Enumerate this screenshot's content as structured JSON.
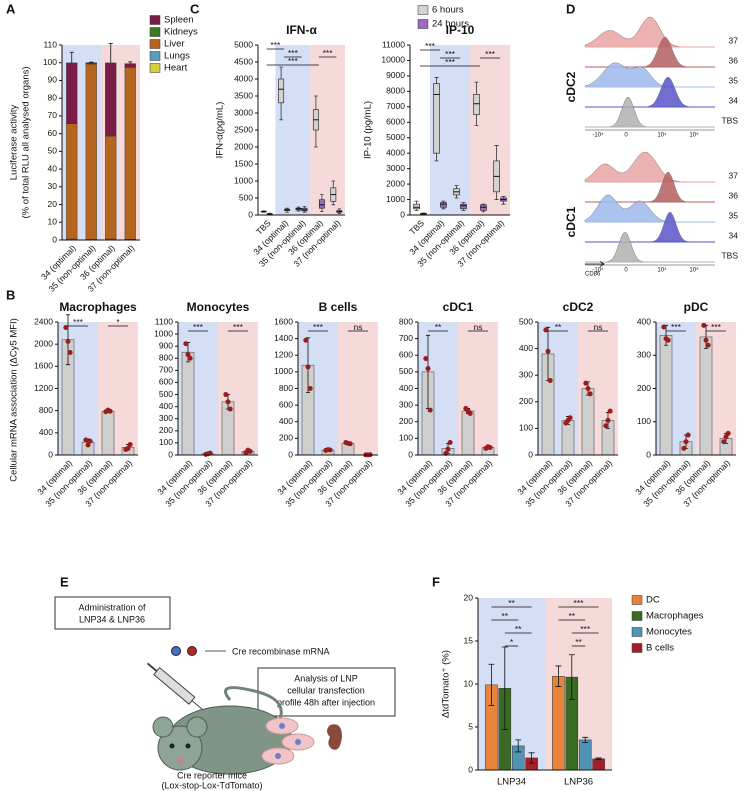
{
  "panel_labels": [
    "A",
    "B",
    "C",
    "D",
    "E",
    "F"
  ],
  "chart_data": [
    {
      "type": "stacked_bar",
      "ylabel": [
        "Luciferase activity",
        "(% of total RLU all analysed organs)"
      ],
      "categories": [
        "34 (optimal)",
        "35 (non-optimal)",
        "36 (optimal)",
        "37 (non-optimal)"
      ],
      "ylim": [
        0,
        110
      ],
      "yticks": [
        0,
        10,
        20,
        30,
        40,
        50,
        60,
        70,
        80,
        90,
        100,
        110
      ],
      "series": [
        {
          "name": "Spleen",
          "color": "#7a1d46",
          "values": [
            34,
            0.6,
            41,
            2
          ],
          "errors": [
            6,
            0.3,
            11,
            1
          ]
        },
        {
          "name": "Kidneys",
          "color": "#3f7a28",
          "values": [
            0.3,
            0.1,
            0.3,
            0.1
          ]
        },
        {
          "name": "Liver",
          "color": "#b5651d",
          "values": [
            65,
            99,
            58,
            97
          ],
          "errors": [
            6,
            0.5,
            10,
            1
          ]
        },
        {
          "name": "Lungs",
          "color": "#5b9bc0",
          "values": [
            0.4,
            0.2,
            0.4,
            0.3
          ]
        },
        {
          "name": "Heart",
          "color": "#d8cc3c",
          "values": [
            0.2,
            0.1,
            0.2,
            0.1
          ]
        }
      ]
    },
    {
      "type": "box",
      "title": "IFN-α",
      "ylabel": "IFN-α(pg/mL)",
      "categories": [
        "TBS",
        "34 (optimal)",
        "35 (non-optimal)",
        "36 (optimal)",
        "37 (non-optimal)"
      ],
      "ylim": [
        0,
        5000
      ],
      "yticks": [
        0,
        500,
        1000,
        1500,
        2000,
        2500,
        3000,
        3500,
        4000,
        4500,
        5000
      ],
      "series": [
        {
          "name": "6 hours",
          "color": "#d3d3d3",
          "boxes": [
            [
              80,
              90,
              100,
              110,
              120
            ],
            [
              2800,
              3300,
              3700,
              4000,
              4350
            ],
            [
              120,
              150,
              180,
              200,
              230
            ],
            [
              2000,
              2500,
              2800,
              3100,
              3500
            ],
            [
              300,
              400,
              600,
              800,
              1000
            ]
          ]
        },
        {
          "name": "24 hours",
          "color": "#9b6cc0",
          "boxes": [
            [
              10,
              20,
              30,
              40,
              50
            ],
            [
              80,
              130,
              150,
              170,
              200
            ],
            [
              80,
              120,
              150,
              200,
              250
            ],
            [
              100,
              200,
              300,
              450,
              600
            ],
            [
              50,
              80,
              100,
              130,
              180
            ]
          ]
        }
      ],
      "brackets": [
        {
          "label": "***",
          "between": [
            0,
            1
          ]
        },
        {
          "label": "***",
          "between": [
            1,
            2
          ]
        },
        {
          "label": "***",
          "between": [
            0,
            3
          ]
        },
        {
          "label": "***",
          "between": [
            3,
            4
          ]
        }
      ]
    },
    {
      "type": "box",
      "title": "IP-10",
      "ylabel": "IP-10 (pg/mL)",
      "categories": [
        "TBS",
        "34 (optimal)",
        "35 (non-optimal)",
        "36 (optimal)",
        "37 (non-optimal)"
      ],
      "ylim": [
        0,
        11000
      ],
      "yticks": [
        0,
        1000,
        2000,
        3000,
        4000,
        5000,
        6000,
        7000,
        8000,
        9000,
        10000,
        11000
      ],
      "series": [
        {
          "color": "#d3d3d3",
          "boxes": [
            [
              300,
              400,
              500,
              700,
              900
            ],
            [
              3500,
              4000,
              7800,
              8500,
              8900
            ],
            [
              1100,
              1300,
              1500,
              1700,
              1900
            ],
            [
              5800,
              6500,
              7200,
              7800,
              8600
            ],
            [
              1000,
              1500,
              2500,
              3500,
              4500
            ]
          ]
        },
        {
          "color": "#9b6cc0",
          "boxes": [
            [
              30,
              50,
              80,
              100,
              130
            ],
            [
              400,
              500,
              700,
              800,
              900
            ],
            [
              300,
              400,
              600,
              700,
              800
            ],
            [
              200,
              300,
              500,
              650,
              700
            ],
            [
              700,
              900,
              1000,
              1100,
              1200
            ]
          ]
        }
      ],
      "brackets": [
        {
          "label": "***",
          "between": [
            0,
            1
          ]
        },
        {
          "label": "***",
          "between": [
            1,
            2
          ]
        },
        {
          "label": "***",
          "between": [
            0,
            3
          ]
        },
        {
          "label": "***",
          "between": [
            3,
            4
          ]
        }
      ]
    },
    {
      "type": "bar",
      "title": "Macrophages",
      "ylabel": "Cellular mRNA association (ΔCy5 MFI)",
      "color": "#cfcfcf",
      "point_color": "#9b1c1c",
      "categories": [
        "34 (optimal)",
        "35 (non-optimal)",
        "36 (optimal)",
        "37 (non-optimal)"
      ],
      "ylim": [
        0,
        2400
      ],
      "yticks": [
        0,
        400,
        800,
        1200,
        1600,
        2000,
        2400
      ],
      "values": [
        2080,
        230,
        790,
        140
      ],
      "errors": [
        450,
        60,
        20,
        50
      ],
      "points": [
        [
          2300,
          2050,
          1850
        ],
        [
          270,
          180,
          250
        ],
        [
          780,
          810,
          790
        ],
        [
          100,
          120,
          190
        ]
      ],
      "brackets": [
        {
          "label": "***",
          "between": [
            0,
            1
          ]
        },
        {
          "label": "*",
          "between": [
            2,
            3
          ]
        }
      ]
    },
    {
      "type": "bar",
      "title": "Monocytes",
      "color": "#cfcfcf",
      "point_color": "#9b1c1c",
      "categories": [
        "34 (optimal)",
        "35 (non-optimal)",
        "36 (optimal)",
        "37 (non-optimal)"
      ],
      "ylim": [
        0,
        1100
      ],
      "yticks": [
        0,
        100,
        200,
        300,
        400,
        500,
        600,
        700,
        800,
        900,
        1000,
        1100
      ],
      "values": [
        850,
        10,
        440,
        30
      ],
      "errors": [
        80,
        10,
        60,
        15
      ],
      "points": [
        [
          920,
          830,
          800
        ],
        [
          5,
          10,
          15
        ],
        [
          500,
          440,
          380
        ],
        [
          20,
          40,
          30
        ]
      ],
      "brackets": [
        {
          "label": "***",
          "between": [
            0,
            1
          ]
        },
        {
          "label": "***",
          "between": [
            2,
            3
          ]
        }
      ]
    },
    {
      "type": "bar",
      "title": "B cells",
      "color": "#cfcfcf",
      "point_color": "#9b1c1c",
      "categories": [
        "34 (optimal)",
        "35 (non-optimal)",
        "36 (optimal)",
        "37 (non-optimal)"
      ],
      "ylim": [
        0,
        1600
      ],
      "yticks": [
        0,
        200,
        400,
        600,
        800,
        1000,
        1200,
        1400,
        1600
      ],
      "values": [
        1080,
        60,
        140,
        2
      ],
      "errors": [
        330,
        10,
        10,
        2
      ],
      "points": [
        [
          1380,
          1060,
          800
        ],
        [
          55,
          65,
          60
        ],
        [
          150,
          140,
          135
        ],
        [
          1,
          2,
          3
        ]
      ],
      "brackets": [
        {
          "label": "***",
          "between": [
            0,
            1
          ]
        },
        {
          "label": "ns",
          "between": [
            2,
            3
          ]
        }
      ]
    },
    {
      "type": "bar",
      "title": "cDC1",
      "color": "#cfcfcf",
      "point_color": "#9b1c1c",
      "categories": [
        "34 (optimal)",
        "35 (non-optimal)",
        "36 (optimal)",
        "37 (non-optimal)"
      ],
      "ylim": [
        0,
        800
      ],
      "yticks": [
        0,
        100,
        200,
        300,
        400,
        500,
        600,
        700,
        800
      ],
      "values": [
        500,
        40,
        265,
        45
      ],
      "errors": [
        220,
        30,
        15,
        10
      ],
      "points": [
        [
          580,
          520,
          270
        ],
        [
          10,
          35,
          75
        ],
        [
          280,
          265,
          250
        ],
        [
          40,
          50,
          45
        ]
      ],
      "brackets": [
        {
          "label": "**",
          "between": [
            0,
            1
          ]
        },
        {
          "label": "ns",
          "between": [
            2,
            3
          ]
        }
      ]
    },
    {
      "type": "bar",
      "title": "cDC2",
      "color": "#cfcfcf",
      "point_color": "#9b1c1c",
      "categories": [
        "34 (optimal)",
        "35 (non-optimal)",
        "36 (optimal)",
        "37 (non-optimal)"
      ],
      "ylim": [
        0,
        500
      ],
      "yticks": [
        0,
        100,
        200,
        300,
        400,
        500
      ],
      "values": [
        380,
        130,
        250,
        130
      ],
      "errors": [
        100,
        15,
        25,
        30
      ],
      "points": [
        [
          470,
          390,
          280
        ],
        [
          120,
          130,
          140
        ],
        [
          270,
          250,
          230
        ],
        [
          110,
          130,
          165
        ]
      ],
      "brackets": [
        {
          "label": "**",
          "between": [
            0,
            1
          ]
        },
        {
          "label": "ns",
          "between": [
            2,
            3
          ]
        }
      ]
    },
    {
      "type": "bar",
      "title": "pDC",
      "color": "#cfcfcf",
      "point_color": "#9b1c1c",
      "categories": [
        "34 (optimal)",
        "35 (non-optimal)",
        "36 (optimal)",
        "37 (non-optimal)"
      ],
      "ylim": [
        0,
        400
      ],
      "yticks": [
        0,
        100,
        200,
        300,
        400
      ],
      "values": [
        360,
        40,
        355,
        50
      ],
      "errors": [
        30,
        20,
        35,
        15
      ],
      "points": [
        [
          385,
          350,
          345
        ],
        [
          20,
          40,
          60
        ],
        [
          390,
          345,
          330
        ],
        [
          40,
          55,
          65
        ]
      ],
      "brackets": [
        {
          "label": "***",
          "between": [
            0,
            1
          ]
        },
        {
          "label": "***",
          "between": [
            2,
            3
          ]
        }
      ]
    },
    {
      "type": "grouped_bar",
      "ylabel": "ΔtdTomato⁺ (%)",
      "categories": [
        "LNP34",
        "LNP36"
      ],
      "ylim": [
        0,
        20
      ],
      "yticks": [
        0,
        5,
        10,
        15,
        20
      ],
      "series": [
        {
          "name": "DC",
          "color": "#e8833a",
          "values": [
            9.9,
            10.9
          ],
          "errors": [
            2.4,
            1.2
          ]
        },
        {
          "name": "Macrophages",
          "color": "#3a6b22",
          "values": [
            9.5,
            10.8
          ],
          "errors": [
            4.8,
            2.6
          ]
        },
        {
          "name": "Monocytes",
          "color": "#4f93b5",
          "values": [
            2.8,
            3.5
          ],
          "errors": [
            0.7,
            0.3
          ]
        },
        {
          "name": "B cells",
          "color": "#a31f2a",
          "values": [
            1.4,
            1.3
          ],
          "errors": [
            0.6,
            0.1
          ]
        }
      ],
      "brackets": [
        {
          "category": 0,
          "label": "**",
          "between": [
            0,
            3
          ]
        },
        {
          "category": 0,
          "label": "**",
          "between": [
            0,
            2
          ]
        },
        {
          "category": 0,
          "label": "**",
          "between": [
            1,
            3
          ]
        },
        {
          "category": 0,
          "label": "*",
          "between": [
            1,
            2
          ]
        },
        {
          "category": 1,
          "label": "***",
          "between": [
            0,
            3
          ]
        },
        {
          "category": 1,
          "label": "**",
          "between": [
            0,
            2
          ]
        },
        {
          "category": 1,
          "label": "***",
          "between": [
            1,
            3
          ]
        },
        {
          "category": 1,
          "label": "**",
          "between": [
            1,
            2
          ]
        }
      ]
    }
  ],
  "flow": {
    "xlabel": "CD86",
    "groups": [
      {
        "title": "cDC2",
        "rows": [
          "37",
          "36",
          "35",
          "34",
          "TBS"
        ],
        "axis_labels": [
          "-10⁴",
          "0",
          "10⁴",
          "10⁵"
        ]
      },
      {
        "title": "cDC1",
        "rows": [
          "37",
          "36",
          "35",
          "34",
          "TBS"
        ],
        "axis_labels": [
          "-10⁴",
          "0",
          "10⁴",
          "10⁵"
        ]
      }
    ]
  },
  "diagram": {
    "box1": [
      "Administration of",
      "LNP34 & LNP36"
    ],
    "mrna": "Cre recombinase mRNA",
    "box2": [
      "Analysis of LNP",
      "cellular transfection",
      "profile 48h after injection"
    ],
    "caption": [
      "Cre reporter mice",
      "(Lox-stop-Lox-TdTomato)"
    ]
  }
}
